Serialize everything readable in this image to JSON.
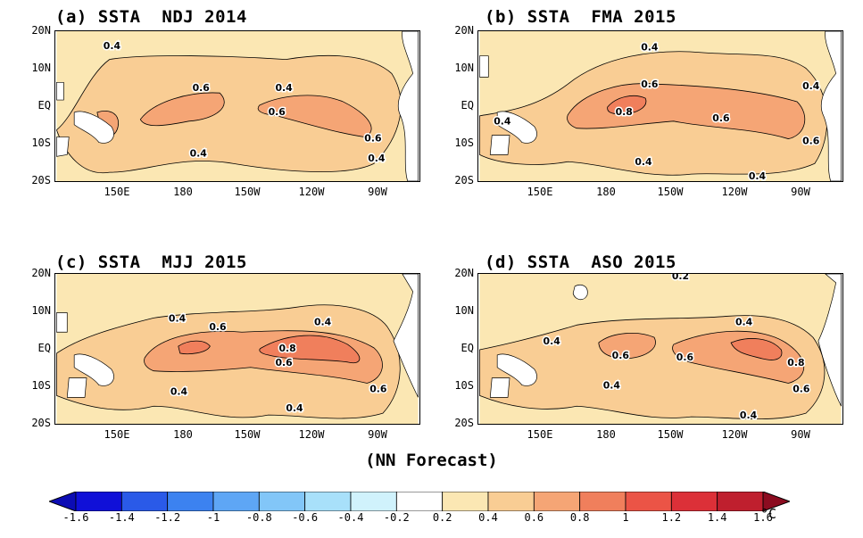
{
  "caption": "(NN Forecast)",
  "lat_labels": [
    "20N",
    "10N",
    "EQ",
    "10S",
    "20S"
  ],
  "lon_labels": [
    "150E",
    "180",
    "150W",
    "120W",
    "90W"
  ],
  "colors": {
    "c02_04": "#fbe7b3",
    "c04_06": "#f9cd94",
    "c06_08": "#f5a575",
    "c08_10": "#f07f5c",
    "land": "#ffffff"
  },
  "panels": [
    {
      "id": "a",
      "title": "(a) SSTA  NDJ 2014",
      "contour_labels": [
        "0.4",
        "0.6",
        "0.4",
        "0.6",
        "0.6",
        "0.4",
        "0.4"
      ]
    },
    {
      "id": "b",
      "title": "(b) SSTA  FMA 2015",
      "contour_labels": [
        "0.4",
        "0.6",
        "0.4",
        "0.4",
        "0.8",
        "0.6",
        "0.6",
        "0.4",
        "0.4"
      ]
    },
    {
      "id": "c",
      "title": "(c) SSTA  MJJ 2015",
      "contour_labels": [
        "0.4",
        "0.6",
        "0.4",
        "0.8",
        "0.6",
        "0.4",
        "0.6",
        "0.4"
      ]
    },
    {
      "id": "d",
      "title": "(d) SSTA  ASO 2015",
      "contour_labels": [
        "0.2",
        "0.4",
        "0.4",
        "0.6",
        "0.6",
        "0.8",
        "0.4",
        "0.6",
        "0.4"
      ]
    }
  ],
  "colorbar": {
    "labels": [
      "-1.6",
      "-1.4",
      "-1.2",
      "-1",
      "-0.8",
      "-0.6",
      "-0.4",
      "-0.2",
      "0.2",
      "0.4",
      "0.6",
      "0.8",
      "1",
      "1.2",
      "1.4",
      "1.6"
    ],
    "colors": [
      "#1010d8",
      "#2a5ae8",
      "#3c82f0",
      "#5ea6f5",
      "#82c6f8",
      "#a8e0fa",
      "#d0f2fc",
      "#ffffff",
      "#fbe7b3",
      "#f9cd94",
      "#f5a575",
      "#f07f5c",
      "#eb5446",
      "#dc3038",
      "#bf1f2e"
    ],
    "unit": "°C"
  }
}
